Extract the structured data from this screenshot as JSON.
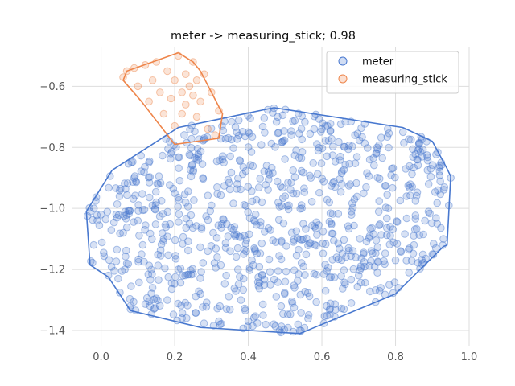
{
  "chart_data": {
    "type": "scatter",
    "title": "meter -> measuring_stick; 0.98",
    "xlabel": "",
    "ylabel": "",
    "xlim": [
      -0.08,
      1.0
    ],
    "ylim": [
      -1.45,
      -0.47
    ],
    "x_ticks": [
      0.0,
      0.2,
      0.4,
      0.6,
      0.8,
      1.0
    ],
    "x_tick_labels": [
      "0.0",
      "0.2",
      "0.4",
      "0.6",
      "0.8",
      "1.0"
    ],
    "y_ticks": [
      -0.6,
      -0.8,
      -1.0,
      -1.2,
      -1.4
    ],
    "y_tick_labels": [
      "−0.6",
      "−0.8",
      "−1.0",
      "−1.2",
      "−1.4"
    ],
    "grid": true,
    "legend_position": "top-right",
    "series": [
      {
        "name": "meter",
        "color": "#4878cf",
        "point_count": 900,
        "hull": [
          [
            -0.04,
            -1.01
          ],
          [
            0.03,
            -0.875
          ],
          [
            0.21,
            -0.735
          ],
          [
            0.47,
            -0.67
          ],
          [
            0.82,
            -0.735
          ],
          [
            0.9,
            -0.78
          ],
          [
            0.94,
            -0.87
          ],
          [
            0.95,
            -0.895
          ],
          [
            0.94,
            -1.12
          ],
          [
            0.93,
            -1.125
          ],
          [
            0.8,
            -1.28
          ],
          [
            0.54,
            -1.41
          ],
          [
            0.27,
            -1.39
          ],
          [
            0.08,
            -1.335
          ],
          [
            0.02,
            -1.225
          ],
          [
            -0.03,
            -1.185
          ],
          [
            -0.04,
            -1.01
          ]
        ],
        "points": [
          [
            -0.03,
            -1.01
          ],
          [
            -0.02,
            -1.12
          ],
          [
            0.0,
            -1.02
          ],
          [
            0.02,
            -1.22
          ],
          [
            0.05,
            -0.96
          ],
          [
            0.06,
            -1.08
          ],
          [
            0.07,
            -1.18
          ],
          [
            0.08,
            -1.33
          ],
          [
            0.09,
            -0.9
          ],
          [
            0.1,
            -1.04
          ],
          [
            0.11,
            -1.15
          ],
          [
            0.13,
            -0.85
          ],
          [
            0.14,
            -1.26
          ],
          [
            0.15,
            -0.98
          ],
          [
            0.17,
            -1.1
          ],
          [
            0.18,
            -1.3
          ],
          [
            0.19,
            -0.82
          ],
          [
            0.2,
            -0.95
          ],
          [
            0.21,
            -1.2
          ],
          [
            0.22,
            -1.36
          ],
          [
            0.24,
            -1.05
          ],
          [
            0.25,
            -0.88
          ],
          [
            0.27,
            -1.28
          ],
          [
            0.28,
            -0.77
          ],
          [
            0.29,
            -1.14
          ],
          [
            0.3,
            -0.99
          ],
          [
            0.32,
            -1.37
          ],
          [
            0.33,
            -0.84
          ],
          [
            0.34,
            -1.22
          ],
          [
            0.36,
            -1.07
          ],
          [
            0.37,
            -0.92
          ],
          [
            0.38,
            -1.3
          ],
          [
            0.4,
            -0.75
          ],
          [
            0.41,
            -1.17
          ],
          [
            0.42,
            -1.02
          ],
          [
            0.44,
            -1.35
          ],
          [
            0.45,
            -0.86
          ],
          [
            0.46,
            -1.25
          ],
          [
            0.48,
            -0.7
          ],
          [
            0.49,
            -1.11
          ],
          [
            0.5,
            -0.96
          ],
          [
            0.52,
            -1.31
          ],
          [
            0.53,
            -0.81
          ],
          [
            0.54,
            -1.4
          ],
          [
            0.55,
            -1.19
          ],
          [
            0.57,
            -0.9
          ],
          [
            0.58,
            -1.06
          ],
          [
            0.6,
            -0.74
          ],
          [
            0.61,
            -1.27
          ],
          [
            0.62,
            -0.98
          ],
          [
            0.64,
            -1.16
          ],
          [
            0.65,
            -0.83
          ],
          [
            0.66,
            -1.33
          ],
          [
            0.68,
            -1.01
          ],
          [
            0.69,
            -0.76
          ],
          [
            0.7,
            -1.22
          ],
          [
            0.72,
            -0.93
          ],
          [
            0.73,
            -1.09
          ],
          [
            0.75,
            -0.8
          ],
          [
            0.76,
            -1.26
          ],
          [
            0.78,
            -1.0
          ],
          [
            0.79,
            -0.87
          ],
          [
            0.8,
            -1.17
          ],
          [
            0.82,
            -0.75
          ],
          [
            0.83,
            -0.96
          ],
          [
            0.85,
            -1.12
          ],
          [
            0.86,
            -0.84
          ],
          [
            0.88,
            -1.04
          ],
          [
            0.89,
            -0.92
          ],
          [
            0.9,
            -1.15
          ],
          [
            0.92,
            -0.86
          ],
          [
            0.93,
            -1.1
          ],
          [
            0.95,
            -0.9
          ]
        ]
      },
      {
        "name": "measuring_stick",
        "color": "#ee854a",
        "point_count": 30,
        "hull": [
          [
            0.21,
            -0.49
          ],
          [
            0.25,
            -0.52
          ],
          [
            0.27,
            -0.55
          ],
          [
            0.3,
            -0.62
          ],
          [
            0.33,
            -0.69
          ],
          [
            0.32,
            -0.77
          ],
          [
            0.2,
            -0.79
          ],
          [
            0.11,
            -0.65
          ],
          [
            0.06,
            -0.58
          ],
          [
            0.07,
            -0.55
          ],
          [
            0.21,
            -0.49
          ]
        ],
        "points": [
          [
            0.06,
            -0.57
          ],
          [
            0.07,
            -0.55
          ],
          [
            0.09,
            -0.54
          ],
          [
            0.1,
            -0.6
          ],
          [
            0.12,
            -0.53
          ],
          [
            0.13,
            -0.65
          ],
          [
            0.14,
            -0.58
          ],
          [
            0.15,
            -0.52
          ],
          [
            0.16,
            -0.62
          ],
          [
            0.17,
            -0.69
          ],
          [
            0.18,
            -0.55
          ],
          [
            0.19,
            -0.64
          ],
          [
            0.2,
            -0.58
          ],
          [
            0.2,
            -0.73
          ],
          [
            0.21,
            -0.5
          ],
          [
            0.22,
            -0.62
          ],
          [
            0.22,
            -0.69
          ],
          [
            0.23,
            -0.56
          ],
          [
            0.23,
            -0.66
          ],
          [
            0.24,
            -0.6
          ],
          [
            0.25,
            -0.52
          ],
          [
            0.25,
            -0.63
          ],
          [
            0.26,
            -0.58
          ],
          [
            0.26,
            -0.7
          ],
          [
            0.27,
            -0.65
          ],
          [
            0.28,
            -0.56
          ],
          [
            0.29,
            -0.74
          ],
          [
            0.3,
            -0.62
          ],
          [
            0.31,
            -0.76
          ],
          [
            0.32,
            -0.68
          ]
        ]
      }
    ]
  }
}
